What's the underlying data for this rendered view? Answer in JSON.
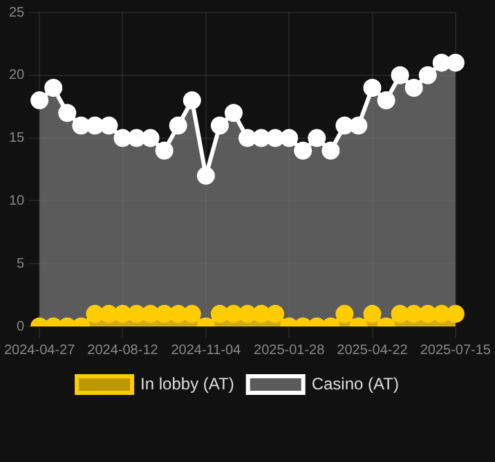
{
  "chart_data": {
    "type": "area",
    "categories": [
      "2024-04-27",
      null,
      null,
      null,
      null,
      null,
      "2024-08-12",
      null,
      null,
      null,
      null,
      null,
      "2024-11-04",
      null,
      null,
      null,
      null,
      null,
      "2025-01-28",
      null,
      null,
      null,
      null,
      null,
      "2025-04-22",
      null,
      null,
      null,
      null,
      null,
      "2025-07-15"
    ],
    "series": [
      {
        "name": "In lobby (AT)",
        "color": "#ffcc00",
        "values": [
          0,
          0,
          0,
          0,
          1,
          1,
          1,
          1,
          1,
          1,
          1,
          1,
          0,
          1,
          1,
          1,
          1,
          1,
          0,
          0,
          0,
          0,
          1,
          0,
          1,
          0,
          1,
          1,
          1,
          1,
          1
        ]
      },
      {
        "name": "Casino (AT)",
        "color": "#ffffff",
        "values": [
          18,
          19,
          17,
          16,
          16,
          16,
          15,
          15,
          15,
          14,
          16,
          18,
          12,
          16,
          17,
          15,
          15,
          15,
          15,
          14,
          15,
          14,
          16,
          16,
          19,
          18,
          20,
          19,
          20,
          21,
          21
        ]
      }
    ],
    "ylim": [
      0,
      25
    ],
    "yticks": [
      0,
      5,
      10,
      15,
      20,
      25
    ],
    "grid": true,
    "legend": "bottom",
    "marker": "circle",
    "line_style": "solid"
  }
}
